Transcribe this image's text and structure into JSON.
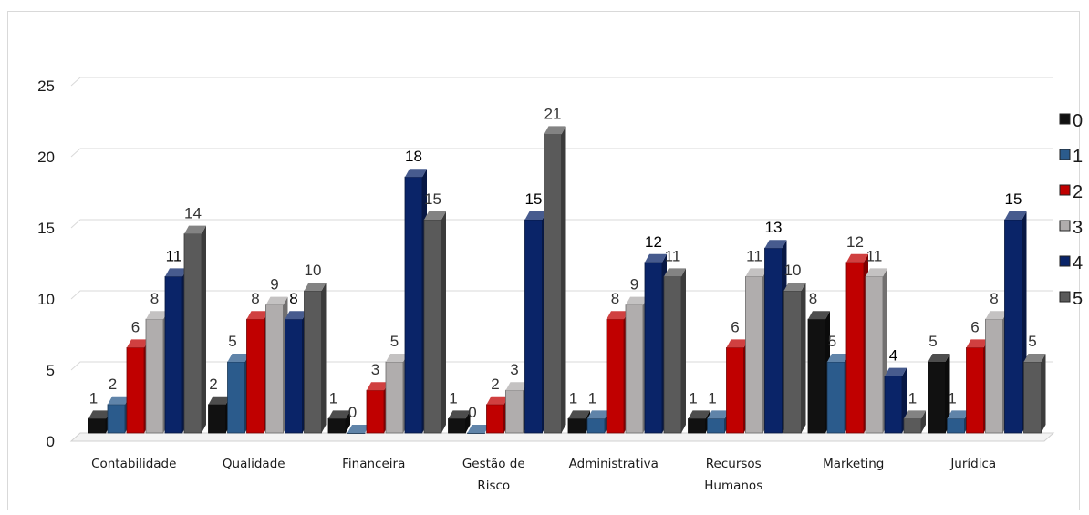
{
  "chart_data": {
    "type": "bar",
    "title": "",
    "xlabel": "",
    "ylabel": "",
    "ylim": [
      0,
      25
    ],
    "yticks": [
      0,
      5,
      10,
      15,
      20,
      25
    ],
    "grid": true,
    "legend_position": "right",
    "categories": [
      [
        "Contabilidade"
      ],
      [
        "Qualidade"
      ],
      [
        "Financeira"
      ],
      [
        "Gestão de",
        "Risco"
      ],
      [
        "Administrativa"
      ],
      [
        "Recursos",
        "Humanos"
      ],
      [
        "Marketing"
      ],
      [
        "Jurídica"
      ]
    ],
    "series": [
      {
        "name": "0",
        "color": "#111111",
        "values": [
          1,
          2,
          1,
          1,
          1,
          1,
          8,
          5
        ]
      },
      {
        "name": "1",
        "color": "#2b5b8c",
        "values": [
          2,
          5,
          0,
          0,
          1,
          1,
          5,
          1
        ]
      },
      {
        "name": "2",
        "color": "#c00000",
        "values": [
          6,
          8,
          3,
          2,
          8,
          6,
          12,
          6
        ]
      },
      {
        "name": "3",
        "color": "#b0adad",
        "values": [
          8,
          9,
          5,
          3,
          9,
          11,
          11,
          8
        ]
      },
      {
        "name": "4",
        "color": "#0a2468",
        "values": [
          11,
          8,
          18,
          15,
          12,
          13,
          4,
          15
        ]
      },
      {
        "name": "5",
        "color": "#5a5a5a",
        "values": [
          14,
          10,
          15,
          21,
          11,
          10,
          1,
          5
        ]
      }
    ]
  }
}
